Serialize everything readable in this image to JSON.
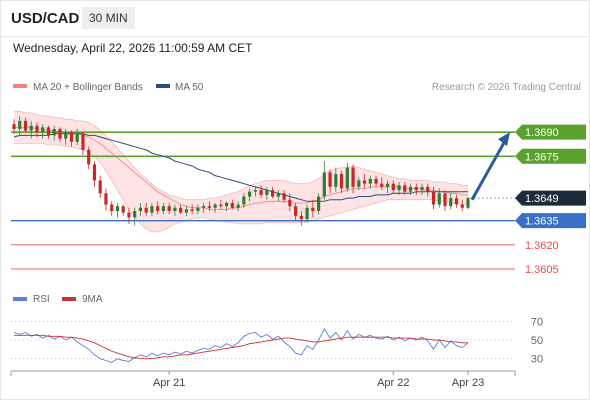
{
  "header": {
    "symbol": "USD/CAD",
    "timeframe": "30 MIN",
    "datetime": "Wednesday, April 22, 2026 11:00:59 AM CET"
  },
  "legend": {
    "bb_label": "MA 20 + Bollinger Bands",
    "ma50_label": "MA 50",
    "credit": "Research © 2026 Trading Central",
    "rsi_label": "RSI",
    "ma9_label": "9MA"
  },
  "colors": {
    "bb": "#f08080",
    "bb_fill": "#fde3e3",
    "ma50": "#2b4c7e",
    "up": "#2e7d32",
    "down": "#c62828",
    "resistance": "#5aa02c",
    "support": "#3a6fc8",
    "support_red": "#e05050",
    "current": "#1c2b3a",
    "arrow": "#2c5a9e",
    "rsi": "#5b7fd6",
    "ma9": "#d32f2f"
  },
  "chart_data": [
    {
      "type": "candlestick",
      "title": "",
      "ylim": [
        1.3595,
        1.371
      ],
      "x_ticks": [
        "Apr 21",
        "Apr 22",
        "Apr 23"
      ],
      "levels": [
        {
          "value": 1.369,
          "label": "1.3690",
          "kind": "resistance"
        },
        {
          "value": 1.3675,
          "label": "1.3675",
          "kind": "resistance"
        },
        {
          "value": 1.3649,
          "label": "1.3649",
          "kind": "current"
        },
        {
          "value": 1.3635,
          "label": "1.3635",
          "kind": "pivot"
        },
        {
          "value": 1.362,
          "label": "1.3620",
          "kind": "support"
        },
        {
          "value": 1.3605,
          "label": "1.3605",
          "kind": "support"
        }
      ],
      "candles": [
        [
          1.3695,
          1.3698,
          1.3689,
          1.3692
        ],
        [
          1.3692,
          1.37,
          1.3688,
          1.3697
        ],
        [
          1.3697,
          1.3699,
          1.369,
          1.3691
        ],
        [
          1.3691,
          1.3697,
          1.3686,
          1.3694
        ],
        [
          1.3694,
          1.3696,
          1.3687,
          1.369
        ],
        [
          1.369,
          1.3695,
          1.3686,
          1.3693
        ],
        [
          1.3693,
          1.3694,
          1.3686,
          1.3688
        ],
        [
          1.3688,
          1.3694,
          1.3685,
          1.3692
        ],
        [
          1.3692,
          1.3693,
          1.3684,
          1.3686
        ],
        [
          1.3686,
          1.3692,
          1.3682,
          1.369
        ],
        [
          1.369,
          1.3691,
          1.3681,
          1.3684
        ],
        [
          1.3684,
          1.3692,
          1.3682,
          1.3689
        ],
        [
          1.3689,
          1.369,
          1.3676,
          1.3679
        ],
        [
          1.3679,
          1.3681,
          1.3667,
          1.367
        ],
        [
          1.367,
          1.3672,
          1.3656,
          1.366
        ],
        [
          1.366,
          1.3663,
          1.3649,
          1.3652
        ],
        [
          1.3652,
          1.3655,
          1.3641,
          1.3645
        ],
        [
          1.3645,
          1.3647,
          1.3638,
          1.3641
        ],
        [
          1.3641,
          1.3646,
          1.3637,
          1.3644
        ],
        [
          1.3644,
          1.3645,
          1.3638,
          1.364
        ],
        [
          1.364,
          1.3643,
          1.3633,
          1.3637
        ],
        [
          1.3637,
          1.3643,
          1.3632,
          1.3641
        ],
        [
          1.3641,
          1.3646,
          1.3638,
          1.3643
        ],
        [
          1.3643,
          1.3646,
          1.3638,
          1.364
        ],
        [
          1.364,
          1.3646,
          1.3638,
          1.3644
        ],
        [
          1.3644,
          1.3647,
          1.3639,
          1.3641
        ],
        [
          1.3641,
          1.3646,
          1.3639,
          1.3644
        ],
        [
          1.3644,
          1.3646,
          1.3639,
          1.3641
        ],
        [
          1.3641,
          1.3645,
          1.3638,
          1.3643
        ],
        [
          1.3643,
          1.3645,
          1.3639,
          1.364
        ],
        [
          1.364,
          1.3644,
          1.3638,
          1.3642
        ],
        [
          1.3642,
          1.3645,
          1.3639,
          1.3641
        ],
        [
          1.3641,
          1.3645,
          1.3639,
          1.3643
        ],
        [
          1.3643,
          1.3646,
          1.364,
          1.3644
        ],
        [
          1.3644,
          1.3647,
          1.3641,
          1.3643
        ],
        [
          1.3643,
          1.3646,
          1.364,
          1.3645
        ],
        [
          1.3645,
          1.3648,
          1.3642,
          1.3644
        ],
        [
          1.3644,
          1.3647,
          1.3641,
          1.3646
        ],
        [
          1.3646,
          1.3648,
          1.3642,
          1.3643
        ],
        [
          1.3643,
          1.3647,
          1.3641,
          1.3645
        ],
        [
          1.3645,
          1.3652,
          1.3643,
          1.365
        ],
        [
          1.365,
          1.3655,
          1.3647,
          1.3653
        ],
        [
          1.3653,
          1.3656,
          1.365,
          1.3654
        ],
        [
          1.3654,
          1.3657,
          1.3649,
          1.3651
        ],
        [
          1.3651,
          1.3656,
          1.3648,
          1.3654
        ],
        [
          1.3654,
          1.3656,
          1.3649,
          1.365
        ],
        [
          1.365,
          1.3654,
          1.3647,
          1.3652
        ],
        [
          1.3652,
          1.3654,
          1.3646,
          1.3648
        ],
        [
          1.3648,
          1.3652,
          1.3641,
          1.3644
        ],
        [
          1.3644,
          1.3646,
          1.3635,
          1.3638
        ],
        [
          1.3638,
          1.3641,
          1.3632,
          1.3636
        ],
        [
          1.3636,
          1.3645,
          1.3634,
          1.3643
        ],
        [
          1.3643,
          1.3648,
          1.3637,
          1.3641
        ],
        [
          1.3641,
          1.3652,
          1.3639,
          1.365
        ],
        [
          1.365,
          1.3672,
          1.3648,
          1.3665
        ],
        [
          1.3665,
          1.3667,
          1.3652,
          1.3656
        ],
        [
          1.3656,
          1.3668,
          1.3653,
          1.3664
        ],
        [
          1.3664,
          1.3666,
          1.3652,
          1.3655
        ],
        [
          1.3655,
          1.3671,
          1.3653,
          1.3668
        ],
        [
          1.3668,
          1.367,
          1.3652,
          1.3656
        ],
        [
          1.3656,
          1.3662,
          1.3654,
          1.366
        ],
        [
          1.366,
          1.3664,
          1.3655,
          1.3658
        ],
        [
          1.3658,
          1.3663,
          1.3655,
          1.3661
        ],
        [
          1.3661,
          1.3663,
          1.3656,
          1.3658
        ],
        [
          1.3658,
          1.3662,
          1.3654,
          1.3656
        ],
        [
          1.3656,
          1.366,
          1.3652,
          1.3658
        ],
        [
          1.3658,
          1.366,
          1.3652,
          1.3654
        ],
        [
          1.3654,
          1.3659,
          1.3651,
          1.3657
        ],
        [
          1.3657,
          1.3659,
          1.3651,
          1.3653
        ],
        [
          1.3653,
          1.3658,
          1.3651,
          1.3656
        ],
        [
          1.3656,
          1.3658,
          1.3651,
          1.3654
        ],
        [
          1.3654,
          1.3658,
          1.3651,
          1.3656
        ],
        [
          1.3656,
          1.3658,
          1.365,
          1.3653
        ],
        [
          1.3653,
          1.3656,
          1.3642,
          1.3645
        ],
        [
          1.3645,
          1.3655,
          1.3643,
          1.3652
        ],
        [
          1.3652,
          1.3654,
          1.3641,
          1.3644
        ],
        [
          1.3644,
          1.3652,
          1.3642,
          1.3649
        ],
        [
          1.3649,
          1.3651,
          1.3643,
          1.3645
        ],
        [
          1.3645,
          1.3648,
          1.3641,
          1.3643
        ],
        [
          1.3643,
          1.365,
          1.3642,
          1.3649
        ]
      ],
      "ma20_upper": [
        1.3703,
        1.3703,
        1.3702,
        1.3702,
        1.3701,
        1.37,
        1.37,
        1.3699,
        1.3699,
        1.3698,
        1.3698,
        1.3697,
        1.3697,
        1.3696,
        1.3694,
        1.3691,
        1.3688,
        1.3684,
        1.368,
        1.3676,
        1.3672,
        1.3668,
        1.3664,
        1.3661,
        1.3658,
        1.3655,
        1.3653,
        1.3651,
        1.365,
        1.3649,
        1.3648,
        1.3648,
        1.3648,
        1.3648,
        1.3649,
        1.3649,
        1.365,
        1.3651,
        1.3652,
        1.3653,
        1.3655,
        1.3657,
        1.3658,
        1.3659,
        1.366,
        1.366,
        1.366,
        1.366,
        1.3659,
        1.3658,
        1.3658,
        1.3658,
        1.3659,
        1.3661,
        1.3664,
        1.3666,
        1.3667,
        1.3668,
        1.3668,
        1.3669,
        1.3668,
        1.3667,
        1.3666,
        1.3665,
        1.3664,
        1.3663,
        1.3662,
        1.3661,
        1.3661,
        1.366,
        1.366,
        1.366,
        1.366,
        1.3659,
        1.3659,
        1.3659,
        1.3658,
        1.3658,
        1.3657,
        1.3657
      ],
      "ma20_mid": [
        1.3693,
        1.3693,
        1.3693,
        1.3693,
        1.3692,
        1.3692,
        1.3691,
        1.3691,
        1.369,
        1.369,
        1.3689,
        1.3689,
        1.3688,
        1.3687,
        1.3685,
        1.3683,
        1.368,
        1.3677,
        1.3674,
        1.3671,
        1.3668,
        1.3665,
        1.3662,
        1.3659,
        1.3656,
        1.3653,
        1.3651,
        1.3649,
        1.3647,
        1.3645,
        1.3644,
        1.3643,
        1.3643,
        1.3643,
        1.3642,
        1.3642,
        1.3642,
        1.3642,
        1.3643,
        1.3643,
        1.3644,
        1.3645,
        1.3646,
        1.3646,
        1.3647,
        1.3647,
        1.3647,
        1.3647,
        1.3647,
        1.3646,
        1.3646,
        1.3646,
        1.3647,
        1.3648,
        1.365,
        1.3651,
        1.3652,
        1.3653,
        1.3654,
        1.3655,
        1.3655,
        1.3655,
        1.3656,
        1.3656,
        1.3656,
        1.3656,
        1.3656,
        1.3656,
        1.3655,
        1.3655,
        1.3655,
        1.3655,
        1.3654,
        1.3654,
        1.3653,
        1.3653,
        1.3652,
        1.3652,
        1.3651,
        1.3651
      ],
      "ma20_lower": [
        1.3683,
        1.3683,
        1.3683,
        1.3683,
        1.3683,
        1.3683,
        1.3682,
        1.3682,
        1.3682,
        1.3681,
        1.3681,
        1.368,
        1.3679,
        1.3677,
        1.3675,
        1.3671,
        1.3666,
        1.366,
        1.3654,
        1.3648,
        1.3642,
        1.3637,
        1.3633,
        1.363,
        1.3628,
        1.3628,
        1.3629,
        1.3631,
        1.3633,
        1.3634,
        1.3635,
        1.3636,
        1.3637,
        1.3637,
        1.3636,
        1.3635,
        1.3635,
        1.3634,
        1.3634,
        1.3633,
        1.3633,
        1.3633,
        1.3633,
        1.3633,
        1.3634,
        1.3634,
        1.3634,
        1.3634,
        1.3634,
        1.3634,
        1.3634,
        1.3634,
        1.3635,
        1.3636,
        1.3637,
        1.3638,
        1.3639,
        1.364,
        1.3641,
        1.3642,
        1.3643,
        1.3644,
        1.3645,
        1.3646,
        1.3647,
        1.3648,
        1.3648,
        1.3648,
        1.3648,
        1.3648,
        1.3648,
        1.3648,
        1.3648,
        1.3648,
        1.3647,
        1.3647,
        1.3646,
        1.3646,
        1.3645,
        1.3645
      ],
      "ma50": [
        1.3687,
        1.3688,
        1.3688,
        1.3688,
        1.3688,
        1.3688,
        1.3688,
        1.3689,
        1.3689,
        1.3689,
        1.3689,
        1.3689,
        1.3689,
        1.3688,
        1.3688,
        1.3687,
        1.3686,
        1.3685,
        1.3684,
        1.3683,
        1.3682,
        1.3681,
        1.368,
        1.3679,
        1.3677,
        1.3676,
        1.3675,
        1.3674,
        1.3672,
        1.3671,
        1.367,
        1.3669,
        1.3667,
        1.3666,
        1.3665,
        1.3663,
        1.3662,
        1.3661,
        1.366,
        1.3659,
        1.3658,
        1.3657,
        1.3656,
        1.3655,
        1.3654,
        1.3653,
        1.3652,
        1.3651,
        1.365,
        1.3649,
        1.3648,
        1.3647,
        1.3647,
        1.3647,
        1.3647,
        1.3648,
        1.3648,
        1.3648,
        1.3649,
        1.3649,
        1.365,
        1.365,
        1.365,
        1.3651,
        1.3651,
        1.3651,
        1.3652,
        1.3652,
        1.3652,
        1.3652,
        1.3653,
        1.3653,
        1.3653,
        1.3653,
        1.3653,
        1.3653,
        1.3653,
        1.3653,
        1.3653,
        1.3653
      ],
      "forecast_arrow": {
        "from": 1.3648,
        "to": 1.369
      }
    },
    {
      "type": "line",
      "ylim": [
        20,
        80
      ],
      "y_ticks": [
        70,
        50,
        30
      ],
      "series": [
        {
          "name": "RSI",
          "values": [
            58,
            56,
            58,
            54,
            56,
            52,
            55,
            51,
            54,
            50,
            53,
            48,
            44,
            40,
            34,
            30,
            28,
            26,
            30,
            28,
            27,
            31,
            34,
            32,
            36,
            33,
            36,
            34,
            37,
            35,
            38,
            36,
            39,
            41,
            40,
            44,
            42,
            46,
            43,
            47,
            54,
            57,
            58,
            53,
            56,
            51,
            54,
            48,
            43,
            36,
            34,
            44,
            40,
            50,
            62,
            52,
            58,
            50,
            60,
            51,
            56,
            53,
            55,
            52,
            51,
            54,
            50,
            53,
            49,
            52,
            50,
            53,
            49,
            40,
            50,
            42,
            49,
            44,
            42,
            47
          ]
        },
        {
          "name": "9MA",
          "values": [
            55,
            55,
            55,
            55,
            55,
            55,
            54,
            54,
            54,
            53,
            53,
            52,
            51,
            49,
            47,
            44,
            41,
            38,
            36,
            34,
            32,
            31,
            30,
            30,
            30,
            31,
            32,
            32,
            33,
            34,
            34,
            35,
            36,
            37,
            38,
            39,
            40,
            41,
            42,
            43,
            44,
            46,
            47,
            48,
            49,
            50,
            51,
            52,
            52,
            51,
            50,
            49,
            48,
            48,
            49,
            50,
            51,
            52,
            53,
            53,
            53,
            53,
            53,
            53,
            53,
            53,
            52,
            52,
            52,
            52,
            51,
            51,
            51,
            50,
            50,
            49,
            48,
            48,
            47,
            47
          ]
        }
      ]
    }
  ]
}
